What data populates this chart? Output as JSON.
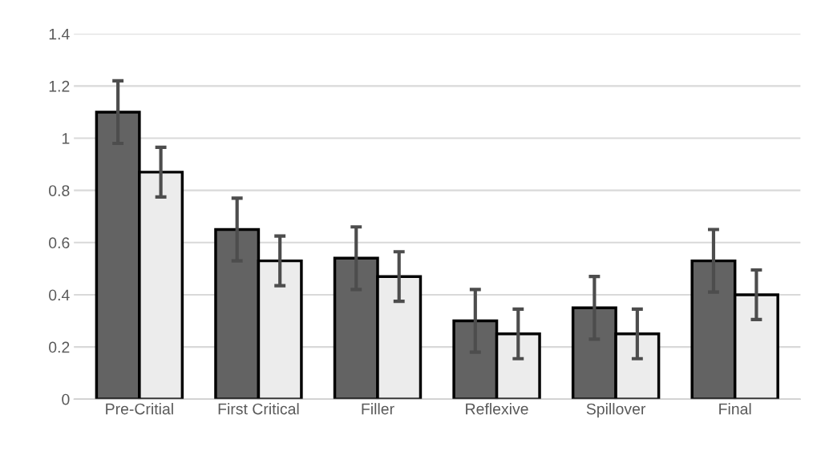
{
  "chart_data": {
    "type": "bar",
    "categories": [
      "Pre-Critial",
      "First Critical",
      "Filler",
      "Reflexive",
      "Spillover",
      "Final"
    ],
    "series": [
      {
        "color": "#636363",
        "values": [
          1.1,
          0.65,
          0.54,
          0.3,
          0.35,
          0.53
        ],
        "errors": [
          0.12,
          0.12,
          0.12,
          0.12,
          0.12,
          0.12
        ]
      },
      {
        "color": "#ececec",
        "values": [
          0.87,
          0.53,
          0.47,
          0.25,
          0.25,
          0.4
        ],
        "errors": [
          0.095,
          0.095,
          0.095,
          0.095,
          0.095,
          0.095
        ]
      }
    ],
    "ylim": [
      0,
      1.4
    ],
    "yticks": [
      0,
      0.2,
      0.4,
      0.6,
      0.8,
      1,
      1.2,
      1.4
    ],
    "grid": "y"
  }
}
